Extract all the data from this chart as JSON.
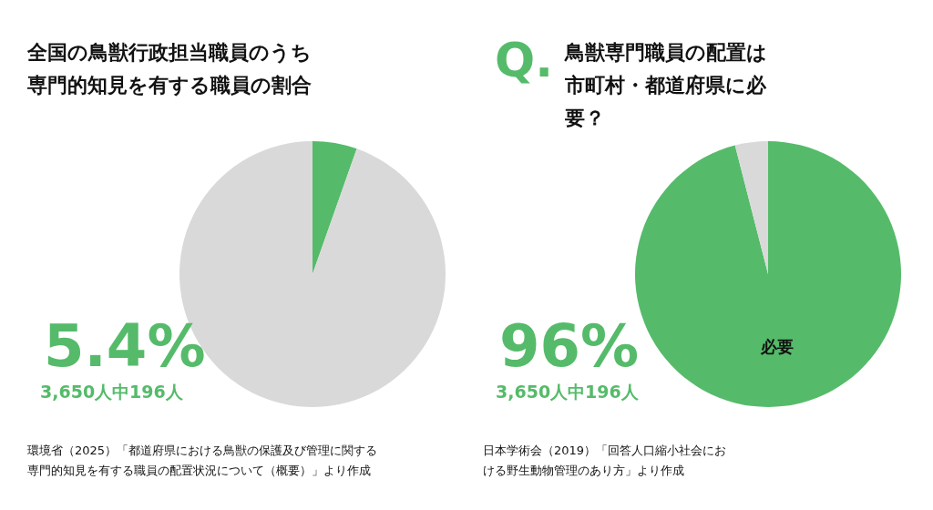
{
  "chart_data": [
    {
      "type": "pie",
      "title": "全国の鳥獣行政担当職員のうち専門的知見を有する職員の割合",
      "categories": [
        null,
        null
      ],
      "values": [
        5.4,
        94.6
      ],
      "colors": [
        "#55bb6a",
        "#d9d9d9"
      ],
      "annotations": [
        "5.4%",
        "3,650人中196人",
        "環境省（2025）「都道府県における鳥獣の保護及び管理に関する専門的知見を有する職員の配置状況について（概要）」より作成"
      ]
    },
    {
      "type": "pie",
      "title": "鳥獣専門職員の配置は市町村・都道府県に必要？",
      "categories": [
        "必要",
        null
      ],
      "values": [
        96,
        4
      ],
      "colors": [
        "#55bb6a",
        "#d9d9d9"
      ],
      "annotations": [
        "Q.",
        "96%",
        "3,650人中196人",
        "日本学術会（2019）「回答人口縮小社会における野生動物管理のあり方」より作成"
      ]
    }
  ]
}
